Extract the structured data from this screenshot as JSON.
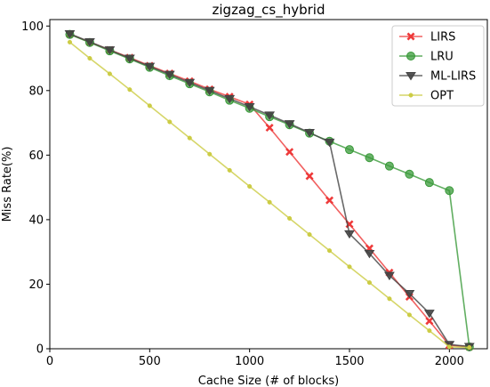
{
  "chart_data": {
    "type": "line",
    "title": "zigzag_cs_hybrid",
    "xlabel": "Cache Size (# of blocks)",
    "ylabel": "Miss Rate(%)",
    "xlim": [
      0,
      2190
    ],
    "ylim": [
      0,
      102
    ],
    "xticks": [
      0,
      500,
      1000,
      1500,
      2000
    ],
    "yticks": [
      0,
      20,
      40,
      60,
      80,
      100
    ],
    "xtick_labels": [
      "0",
      "500",
      "1000",
      "1500",
      "2000"
    ],
    "ytick_labels": [
      "0",
      "20",
      "40",
      "60",
      "80",
      "100"
    ],
    "grid": false,
    "legend_position": "top-right",
    "x": [
      100,
      200,
      300,
      400,
      500,
      600,
      700,
      800,
      900,
      1000,
      1100,
      1200,
      1300,
      1400,
      1500,
      1600,
      1700,
      1800,
      1900,
      2000,
      2100
    ],
    "series": [
      {
        "name": "LIRS",
        "color": "#ee3a3a",
        "marker": "x",
        "values": [
          97.5,
          95.0,
          92.6,
          90.2,
          87.7,
          85.3,
          82.9,
          80.4,
          78.1,
          75.7,
          68.5,
          61.0,
          53.5,
          46.0,
          38.6,
          31.1,
          23.6,
          16.1,
          8.6,
          1.1,
          0.6
        ]
      },
      {
        "name": "LRU",
        "color": "#3a9a3a",
        "marker": "circle",
        "values": [
          97.4,
          94.9,
          92.3,
          89.8,
          87.2,
          84.6,
          82.1,
          79.6,
          77.0,
          74.5,
          71.9,
          69.4,
          66.8,
          64.3,
          61.7,
          59.2,
          56.6,
          54.1,
          51.5,
          49.0,
          0.6
        ]
      },
      {
        "name": "ML-LIRS",
        "color": "#444444",
        "marker": "triangle-down",
        "values": [
          97.6,
          95.1,
          92.6,
          90.0,
          87.5,
          85.0,
          82.5,
          80.0,
          77.5,
          75.0,
          72.4,
          69.7,
          67.0,
          64.0,
          35.6,
          29.5,
          22.7,
          17.1,
          11.0,
          1.3,
          0.7
        ]
      },
      {
        "name": "OPT",
        "color": "#cccc44",
        "marker": "dot",
        "values": [
          95.0,
          90.0,
          85.2,
          80.3,
          75.3,
          70.3,
          65.3,
          60.3,
          55.3,
          50.3,
          45.4,
          40.4,
          35.4,
          30.4,
          25.4,
          20.5,
          15.5,
          10.5,
          5.6,
          0.6,
          0.4
        ]
      }
    ]
  }
}
